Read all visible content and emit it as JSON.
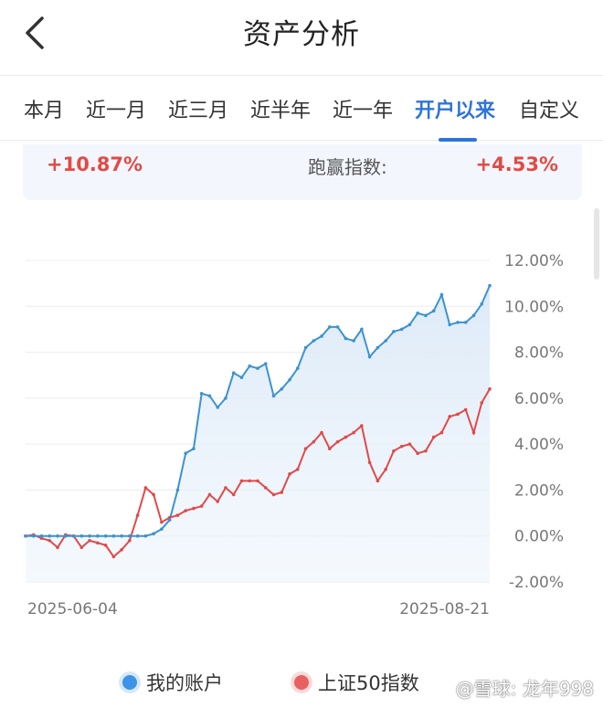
{
  "header": {
    "title": "资产分析"
  },
  "tabs": [
    {
      "label": "本月",
      "active": false
    },
    {
      "label": "近一月",
      "active": false
    },
    {
      "label": "近三月",
      "active": false
    },
    {
      "label": "近半年",
      "active": false
    },
    {
      "label": "近一年",
      "active": false
    },
    {
      "label": "开户以来",
      "active": true
    },
    {
      "label": "自定义",
      "active": false
    }
  ],
  "summary": {
    "return_value": "+10.87%",
    "beat_index_label": "跑赢指数:",
    "beat_index_value": "+4.53%"
  },
  "colors": {
    "accent": "#2f74d8",
    "account_series": "#3d93cf",
    "index_series": "#e04a4a",
    "positive": "#e24a45"
  },
  "chart_data": {
    "type": "line",
    "x_start_label": "2025-06-04",
    "x_end_label": "2025-08-21",
    "y_ticks": [
      "12.00%",
      "10.00%",
      "8.00%",
      "6.00%",
      "4.00%",
      "2.00%",
      "0.00%",
      "-2.00%"
    ],
    "ylim": [
      -2,
      12
    ],
    "series": [
      {
        "name": "我的账户",
        "values": [
          0,
          0,
          0,
          0,
          0,
          0,
          0,
          0,
          0,
          0,
          0,
          0,
          0,
          0,
          0,
          0,
          0.1,
          0.3,
          0.7,
          2.0,
          3.6,
          3.8,
          6.2,
          6.1,
          5.6,
          6.0,
          7.1,
          6.9,
          7.4,
          7.3,
          7.5,
          6.1,
          6.4,
          6.8,
          7.3,
          8.2,
          8.5,
          8.7,
          9.1,
          9.1,
          8.6,
          8.5,
          9.0,
          7.8,
          8.2,
          8.5,
          8.9,
          9.0,
          9.2,
          9.7,
          9.6,
          9.8,
          10.5,
          9.2,
          9.3,
          9.3,
          9.6,
          10.1,
          10.9
        ]
      },
      {
        "name": "上证50指数",
        "values": [
          0,
          0.05,
          -0.1,
          -0.2,
          -0.5,
          0.05,
          0,
          -0.5,
          -0.2,
          -0.3,
          -0.4,
          -0.9,
          -0.6,
          -0.2,
          0.9,
          2.1,
          1.8,
          0.6,
          0.8,
          0.9,
          1.1,
          1.2,
          1.3,
          1.8,
          1.5,
          2.1,
          1.8,
          2.4,
          2.4,
          2.4,
          2.1,
          1.8,
          1.9,
          2.7,
          2.9,
          3.8,
          4.1,
          4.5,
          3.8,
          4.1,
          4.3,
          4.5,
          4.8,
          3.2,
          2.4,
          2.9,
          3.7,
          3.9,
          4.0,
          3.6,
          3.7,
          4.3,
          4.5,
          5.2,
          5.3,
          5.5,
          4.5,
          5.8,
          6.4
        ]
      }
    ]
  },
  "legend": {
    "account": "我的账户",
    "index": "上证50指数"
  },
  "watermark": "@雪球: 龙年998"
}
